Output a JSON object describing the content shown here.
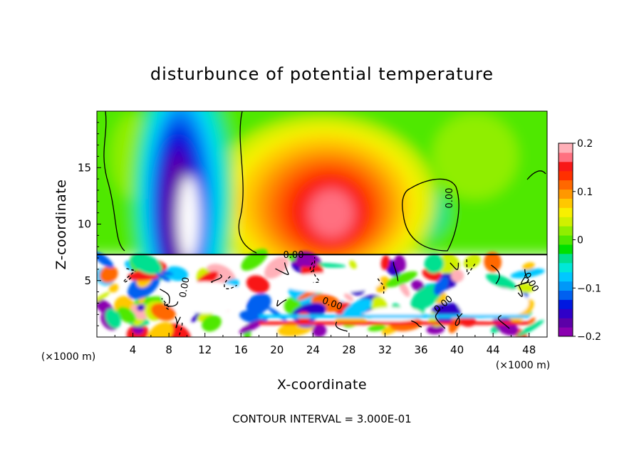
{
  "chart_data": {
    "type": "heatmap",
    "title": "disturbunce of potential temperature",
    "xlabel": "X-coordinate",
    "ylabel": "Z-coordinate",
    "x_unit": "(×1000 m)",
    "x_unit_right": "(×1000 m)",
    "xlim": [
      0,
      50
    ],
    "ylim": [
      0,
      20
    ],
    "x_ticks": [
      4,
      8,
      12,
      16,
      20,
      24,
      28,
      32,
      36,
      40,
      44,
      48
    ],
    "y_ticks": [
      5,
      10,
      15
    ],
    "colorbar": {
      "range": [
        -0.2,
        0.2
      ],
      "tick_values": [
        0.2,
        0.1,
        0,
        -0.1,
        -0.2
      ],
      "tick_labels": [
        "0.2",
        "0.1",
        "0",
        "−0.1",
        "−0.2"
      ],
      "colors": [
        "#8b00b0",
        "#5c00a8",
        "#2f00c8",
        "#0018e0",
        "#0060f0",
        "#0098f8",
        "#00c8ff",
        "#00e8d8",
        "#00e090",
        "#00e000",
        "#50e800",
        "#90ee00",
        "#d0f000",
        "#f8f000",
        "#ffc800",
        "#ff9800",
        "#ff6800",
        "#ff3000",
        "#f81818",
        "#ff7080",
        "#ffb0b8"
      ]
    },
    "contour_interval": "CONTOUR INTERVAL = 3.000E-01",
    "contour_labels": [
      "0.00",
      "0.00",
      "0.00",
      "0.00",
      "0.00",
      "0.00"
    ],
    "inversion_height": 7.3,
    "features": [
      {
        "name": "cold-column",
        "x": 9.5,
        "z": 13,
        "value": -0.2
      },
      {
        "name": "warm-anomaly",
        "x": 26,
        "z": 11,
        "value": 0.18
      },
      {
        "name": "weak-cold-cell",
        "x": 36,
        "z": 11,
        "value": -0.02
      }
    ]
  }
}
